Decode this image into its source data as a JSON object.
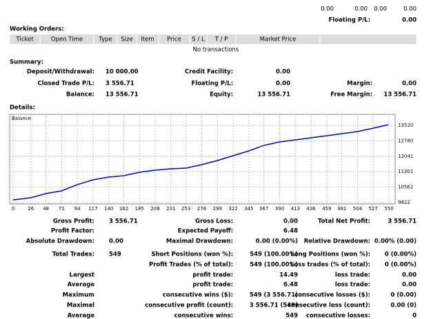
{
  "top": {
    "values": [
      "0.00",
      "0.00",
      "0.00",
      "0.00"
    ],
    "floating_label": "Floating P/L:",
    "floating_value": "0.00"
  },
  "working_orders": {
    "title": "Working Orders:",
    "columns": [
      "Ticket",
      "Open Time",
      "Type",
      "Size",
      "Item",
      "Price",
      "S / L",
      "T / P",
      "Market Price"
    ],
    "empty": "No transactions"
  },
  "summary": {
    "title": "Summary:",
    "rows": [
      {
        "l1": "Deposit/Withdrawal:",
        "v1": "10 000.00",
        "l2": "Credit Facility:",
        "v2": "0.00"
      },
      {
        "l1": "Closed Trade P/L:",
        "v1": "3 556.71",
        "l2": "Floating P/L:",
        "v2": "0.00",
        "l3": "Margin:",
        "v3": "0.00"
      },
      {
        "l1": "Balance:",
        "v1": "13 556.71",
        "l2": "Equity:",
        "v2": "13 556.71",
        "l3": "Free Margin:",
        "v3": "13 556.71"
      }
    ]
  },
  "details": {
    "title": "Details:",
    "chart": {
      "type": "line",
      "label": "Balance",
      "color": "#0000cc",
      "grid": true,
      "x": [
        0,
        26,
        48,
        71,
        94,
        117,
        140,
        162,
        185,
        208,
        231,
        253,
        276,
        299,
        322,
        345,
        367,
        390,
        413,
        436,
        459,
        481,
        504,
        527,
        549
      ],
      "values": [
        9950,
        10054,
        10252,
        10384,
        10681,
        10912,
        11044,
        11110,
        11275,
        11374,
        11440,
        11473,
        11638,
        11836,
        12067,
        12298,
        12563,
        12728,
        12827,
        12926,
        13025,
        13124,
        13223,
        13388,
        13553
      ],
      "xlim": [
        -5,
        559
      ],
      "ylim": [
        9756,
        14048
      ],
      "xticks": [
        0,
        26,
        48,
        71,
        94,
        117,
        140,
        162,
        185,
        208,
        231,
        253,
        276,
        299,
        322,
        345,
        367,
        390,
        413,
        436,
        459,
        481,
        504,
        527,
        550
      ],
      "yticks": [
        9822,
        10562,
        11301,
        12041,
        12780,
        13520
      ]
    },
    "rows": [
      {
        "l1": "Gross Profit:",
        "v1": "3 556.71",
        "l2": "Gross Loss:",
        "v2": "0.00",
        "l3": "Total Net Profit:",
        "v3": "3 556.71"
      },
      {
        "l1": "Profit Factor:",
        "l2": "Expected Payoff:",
        "v2": "6.48"
      },
      {
        "l1": "Absolute Drawdown:",
        "v1": "0.00",
        "l2": "Maximal Drawdown:",
        "v2": "0.00 (0.00%)",
        "l3": "Relative Drawdown:",
        "v3": "0.00% (0.00)"
      },
      {
        "l1": "Total Trades:",
        "v1": "549",
        "l2": "Short Positions (won %):",
        "v2": "549 (100.00%)",
        "l3": "Long Positions (won %):",
        "v3": "0 (0.00%)"
      },
      {
        "l2": "Profit Trades (% of total):",
        "v2": "549 (100.00%)",
        "l3": "Loss trades (% of total):",
        "v3": "0 (0.00%)"
      },
      {
        "l1": "Largest",
        "l2": "profit trade:",
        "v2": "14.49",
        "l3": "loss trade:",
        "v3": "0.00"
      },
      {
        "l1": "Average",
        "l2": "profit trade:",
        "v2": "6.48",
        "l3": "loss trade:",
        "v3": "0.00"
      },
      {
        "l1": "Maximum",
        "l2": "consecutive wins ($):",
        "v2": "549 (3 556.71)",
        "l3": "consecutive losses ($):",
        "v3": "0 (0.00)"
      },
      {
        "l1": "Maximal",
        "l2": "consecutive profit (count):",
        "v2": "3 556.71 (549)",
        "l3": "consecutive loss (count):",
        "v3": "0.00 (0)"
      },
      {
        "l1": "Average",
        "l2": "consecutive wins:",
        "v2": "549",
        "l3": "consecutive losses:",
        "v3": "0"
      }
    ]
  }
}
